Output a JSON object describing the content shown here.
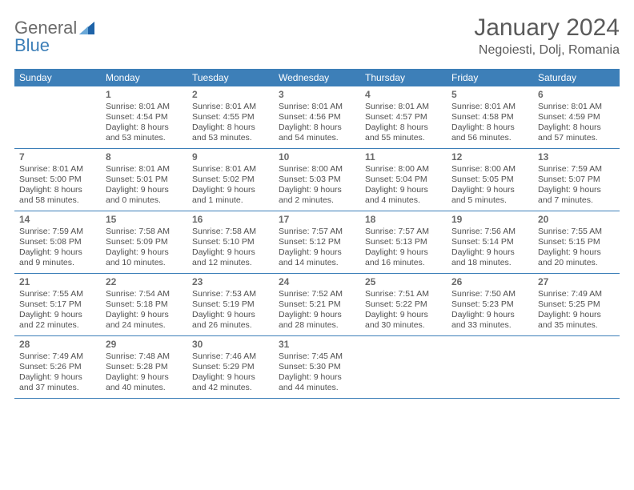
{
  "logo": {
    "general": "General",
    "blue": "Blue"
  },
  "title": {
    "month": "January 2024",
    "location": "Negoiesti, Dolj, Romania"
  },
  "colors": {
    "header_bg": "#3d7fb8",
    "header_fg": "#ffffff",
    "text": "#505050",
    "title_text": "#5a5a5a",
    "border": "#3d7fb8",
    "logo_gray": "#6b6b6b",
    "logo_blue": "#3d7fb8"
  },
  "weekdays": [
    "Sunday",
    "Monday",
    "Tuesday",
    "Wednesday",
    "Thursday",
    "Friday",
    "Saturday"
  ],
  "weeks": [
    [
      {
        "blank": true
      },
      {
        "day": "1",
        "sunrise": "Sunrise: 8:01 AM",
        "sunset": "Sunset: 4:54 PM",
        "daylight1": "Daylight: 8 hours",
        "daylight2": "and 53 minutes."
      },
      {
        "day": "2",
        "sunrise": "Sunrise: 8:01 AM",
        "sunset": "Sunset: 4:55 PM",
        "daylight1": "Daylight: 8 hours",
        "daylight2": "and 53 minutes."
      },
      {
        "day": "3",
        "sunrise": "Sunrise: 8:01 AM",
        "sunset": "Sunset: 4:56 PM",
        "daylight1": "Daylight: 8 hours",
        "daylight2": "and 54 minutes."
      },
      {
        "day": "4",
        "sunrise": "Sunrise: 8:01 AM",
        "sunset": "Sunset: 4:57 PM",
        "daylight1": "Daylight: 8 hours",
        "daylight2": "and 55 minutes."
      },
      {
        "day": "5",
        "sunrise": "Sunrise: 8:01 AM",
        "sunset": "Sunset: 4:58 PM",
        "daylight1": "Daylight: 8 hours",
        "daylight2": "and 56 minutes."
      },
      {
        "day": "6",
        "sunrise": "Sunrise: 8:01 AM",
        "sunset": "Sunset: 4:59 PM",
        "daylight1": "Daylight: 8 hours",
        "daylight2": "and 57 minutes."
      }
    ],
    [
      {
        "day": "7",
        "sunrise": "Sunrise: 8:01 AM",
        "sunset": "Sunset: 5:00 PM",
        "daylight1": "Daylight: 8 hours",
        "daylight2": "and 58 minutes."
      },
      {
        "day": "8",
        "sunrise": "Sunrise: 8:01 AM",
        "sunset": "Sunset: 5:01 PM",
        "daylight1": "Daylight: 9 hours",
        "daylight2": "and 0 minutes."
      },
      {
        "day": "9",
        "sunrise": "Sunrise: 8:01 AM",
        "sunset": "Sunset: 5:02 PM",
        "daylight1": "Daylight: 9 hours",
        "daylight2": "and 1 minute."
      },
      {
        "day": "10",
        "sunrise": "Sunrise: 8:00 AM",
        "sunset": "Sunset: 5:03 PM",
        "daylight1": "Daylight: 9 hours",
        "daylight2": "and 2 minutes."
      },
      {
        "day": "11",
        "sunrise": "Sunrise: 8:00 AM",
        "sunset": "Sunset: 5:04 PM",
        "daylight1": "Daylight: 9 hours",
        "daylight2": "and 4 minutes."
      },
      {
        "day": "12",
        "sunrise": "Sunrise: 8:00 AM",
        "sunset": "Sunset: 5:05 PM",
        "daylight1": "Daylight: 9 hours",
        "daylight2": "and 5 minutes."
      },
      {
        "day": "13",
        "sunrise": "Sunrise: 7:59 AM",
        "sunset": "Sunset: 5:07 PM",
        "daylight1": "Daylight: 9 hours",
        "daylight2": "and 7 minutes."
      }
    ],
    [
      {
        "day": "14",
        "sunrise": "Sunrise: 7:59 AM",
        "sunset": "Sunset: 5:08 PM",
        "daylight1": "Daylight: 9 hours",
        "daylight2": "and 9 minutes."
      },
      {
        "day": "15",
        "sunrise": "Sunrise: 7:58 AM",
        "sunset": "Sunset: 5:09 PM",
        "daylight1": "Daylight: 9 hours",
        "daylight2": "and 10 minutes."
      },
      {
        "day": "16",
        "sunrise": "Sunrise: 7:58 AM",
        "sunset": "Sunset: 5:10 PM",
        "daylight1": "Daylight: 9 hours",
        "daylight2": "and 12 minutes."
      },
      {
        "day": "17",
        "sunrise": "Sunrise: 7:57 AM",
        "sunset": "Sunset: 5:12 PM",
        "daylight1": "Daylight: 9 hours",
        "daylight2": "and 14 minutes."
      },
      {
        "day": "18",
        "sunrise": "Sunrise: 7:57 AM",
        "sunset": "Sunset: 5:13 PM",
        "daylight1": "Daylight: 9 hours",
        "daylight2": "and 16 minutes."
      },
      {
        "day": "19",
        "sunrise": "Sunrise: 7:56 AM",
        "sunset": "Sunset: 5:14 PM",
        "daylight1": "Daylight: 9 hours",
        "daylight2": "and 18 minutes."
      },
      {
        "day": "20",
        "sunrise": "Sunrise: 7:55 AM",
        "sunset": "Sunset: 5:15 PM",
        "daylight1": "Daylight: 9 hours",
        "daylight2": "and 20 minutes."
      }
    ],
    [
      {
        "day": "21",
        "sunrise": "Sunrise: 7:55 AM",
        "sunset": "Sunset: 5:17 PM",
        "daylight1": "Daylight: 9 hours",
        "daylight2": "and 22 minutes."
      },
      {
        "day": "22",
        "sunrise": "Sunrise: 7:54 AM",
        "sunset": "Sunset: 5:18 PM",
        "daylight1": "Daylight: 9 hours",
        "daylight2": "and 24 minutes."
      },
      {
        "day": "23",
        "sunrise": "Sunrise: 7:53 AM",
        "sunset": "Sunset: 5:19 PM",
        "daylight1": "Daylight: 9 hours",
        "daylight2": "and 26 minutes."
      },
      {
        "day": "24",
        "sunrise": "Sunrise: 7:52 AM",
        "sunset": "Sunset: 5:21 PM",
        "daylight1": "Daylight: 9 hours",
        "daylight2": "and 28 minutes."
      },
      {
        "day": "25",
        "sunrise": "Sunrise: 7:51 AM",
        "sunset": "Sunset: 5:22 PM",
        "daylight1": "Daylight: 9 hours",
        "daylight2": "and 30 minutes."
      },
      {
        "day": "26",
        "sunrise": "Sunrise: 7:50 AM",
        "sunset": "Sunset: 5:23 PM",
        "daylight1": "Daylight: 9 hours",
        "daylight2": "and 33 minutes."
      },
      {
        "day": "27",
        "sunrise": "Sunrise: 7:49 AM",
        "sunset": "Sunset: 5:25 PM",
        "daylight1": "Daylight: 9 hours",
        "daylight2": "and 35 minutes."
      }
    ],
    [
      {
        "day": "28",
        "sunrise": "Sunrise: 7:49 AM",
        "sunset": "Sunset: 5:26 PM",
        "daylight1": "Daylight: 9 hours",
        "daylight2": "and 37 minutes."
      },
      {
        "day": "29",
        "sunrise": "Sunrise: 7:48 AM",
        "sunset": "Sunset: 5:28 PM",
        "daylight1": "Daylight: 9 hours",
        "daylight2": "and 40 minutes."
      },
      {
        "day": "30",
        "sunrise": "Sunrise: 7:46 AM",
        "sunset": "Sunset: 5:29 PM",
        "daylight1": "Daylight: 9 hours",
        "daylight2": "and 42 minutes."
      },
      {
        "day": "31",
        "sunrise": "Sunrise: 7:45 AM",
        "sunset": "Sunset: 5:30 PM",
        "daylight1": "Daylight: 9 hours",
        "daylight2": "and 44 minutes."
      },
      {
        "blank": true
      },
      {
        "blank": true
      },
      {
        "blank": true
      }
    ]
  ]
}
